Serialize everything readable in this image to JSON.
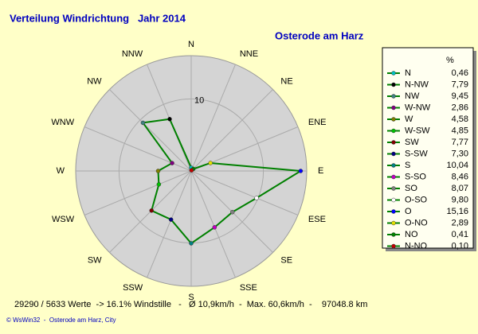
{
  "chart_data": {
    "type": "radar",
    "title": "Verteilung Windrichtung   Jahr 2014",
    "subtitle": "Osterode am Harz",
    "direction_labels": [
      "N",
      "NNE",
      "NE",
      "ENE",
      "E",
      "ESE",
      "SE",
      "SSE",
      "S",
      "SSW",
      "SW",
      "WSW",
      "W",
      "WNW",
      "NW",
      "NNW"
    ],
    "legend_header": "%",
    "categories": [
      "N",
      "N-NW",
      "NW",
      "W-NW",
      "W",
      "W-SW",
      "SW",
      "S-SW",
      "S",
      "S-SO",
      "SO",
      "O-SO",
      "O",
      "O-NO",
      "NO",
      "N-NO"
    ],
    "values": [
      0.46,
      7.79,
      9.45,
      2.86,
      4.58,
      4.85,
      7.77,
      7.3,
      10.04,
      8.46,
      8.07,
      9.8,
      15.16,
      2.89,
      0.41,
      0.1
    ],
    "value_labels": [
      "0,46",
      "7,79",
      "9,45",
      "2,86",
      "4,58",
      "4,85",
      "7,77",
      "7,30",
      "10,04",
      "8,46",
      "8,07",
      "9,80",
      "15,16",
      "2,89",
      "0,41",
      "0,10"
    ],
    "marker_colors": [
      "#00c0c0",
      "#000000",
      "#408080",
      "#800080",
      "#808000",
      "#00c000",
      "#800000",
      "#000080",
      "#008080",
      "#c000c0",
      "#808080",
      "#ffffff",
      "#0000ff",
      "#e0e000",
      "#008000",
      "#c00000"
    ],
    "color": "#008000",
    "ylim": [
      0,
      16
    ],
    "yticks": [
      10
    ],
    "footer": "29290 / 5633 Werte  -> 16.1% Windstille   -   Ø 10,9km/h  -  Max. 60,6km/h  -    97048.8 km",
    "credit": "© WsWin32  -  Osterode am Harz, City"
  }
}
